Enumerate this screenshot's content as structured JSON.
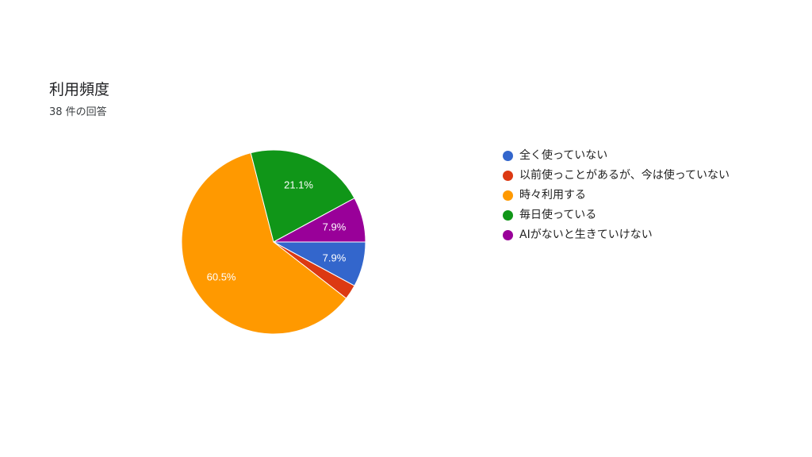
{
  "header": {
    "title": "利用頻度",
    "responses": "38 件の回答"
  },
  "chart_data": {
    "type": "pie",
    "categories": [
      "全く使っていない",
      "以前使っことがあるが、今は使っていない",
      "時々利用する",
      "毎日使っている",
      "AIがないと生きていけない"
    ],
    "values": [
      7.9,
      2.6,
      60.5,
      21.1,
      7.9
    ],
    "data_labels": [
      "7.9%",
      "",
      "60.5%",
      "21.1%",
      "7.9%"
    ],
    "colors": [
      "#3366cc",
      "#dc3912",
      "#ff9900",
      "#109618",
      "#990099"
    ],
    "legend_position": "right"
  }
}
